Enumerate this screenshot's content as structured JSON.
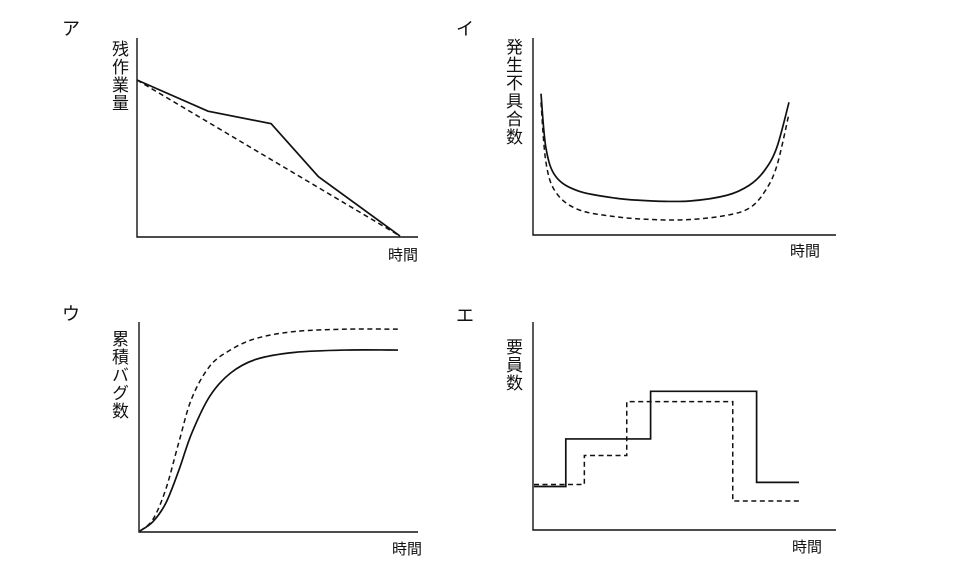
{
  "panels": [
    {
      "id": "a",
      "label": "ア",
      "ylabel": "残作業量",
      "xlabel": "時間",
      "chart_data": {
        "type": "line",
        "series": [
          {
            "style": "solid",
            "points": [
              [
                0,
                1.0
              ],
              [
                0.27,
                0.8
              ],
              [
                0.51,
                0.72
              ],
              [
                0.69,
                0.38
              ],
              [
                1.0,
                0.0
              ]
            ]
          },
          {
            "style": "dashed",
            "points": [
              [
                0,
                1.0
              ],
              [
                1.0,
                0.0
              ]
            ]
          }
        ]
      }
    },
    {
      "id": "i",
      "label": "イ",
      "ylabel": "発生不具合数",
      "xlabel": "時間",
      "chart_data": {
        "type": "line",
        "series": [
          {
            "style": "solid",
            "points": [
              [
                0.0,
                0.96
              ],
              [
                0.02,
                0.58
              ],
              [
                0.06,
                0.38
              ],
              [
                0.15,
                0.28
              ],
              [
                0.3,
                0.23
              ],
              [
                0.45,
                0.21
              ],
              [
                0.6,
                0.21
              ],
              [
                0.75,
                0.25
              ],
              [
                0.84,
                0.32
              ],
              [
                0.9,
                0.42
              ],
              [
                0.95,
                0.58
              ],
              [
                1.0,
                0.9
              ]
            ]
          },
          {
            "style": "dashed",
            "points": [
              [
                0.0,
                0.9
              ],
              [
                0.02,
                0.48
              ],
              [
                0.06,
                0.27
              ],
              [
                0.15,
                0.15
              ],
              [
                0.3,
                0.1
              ],
              [
                0.45,
                0.08
              ],
              [
                0.6,
                0.08
              ],
              [
                0.75,
                0.11
              ],
              [
                0.84,
                0.16
              ],
              [
                0.9,
                0.27
              ],
              [
                0.95,
                0.45
              ],
              [
                1.0,
                0.82
              ]
            ]
          }
        ]
      }
    },
    {
      "id": "u",
      "label": "ウ",
      "ylabel": "累積バグ数",
      "xlabel": "時間",
      "chart_data": {
        "type": "line",
        "series": [
          {
            "style": "solid",
            "points": [
              [
                0,
                0
              ],
              [
                0.05,
                0.04
              ],
              [
                0.1,
                0.12
              ],
              [
                0.15,
                0.26
              ],
              [
                0.2,
                0.42
              ],
              [
                0.27,
                0.58
              ],
              [
                0.35,
                0.68
              ],
              [
                0.45,
                0.74
              ],
              [
                0.6,
                0.77
              ],
              [
                0.8,
                0.78
              ],
              [
                1.0,
                0.78
              ]
            ]
          },
          {
            "style": "dashed",
            "points": [
              [
                0,
                0
              ],
              [
                0.05,
                0.05
              ],
              [
                0.1,
                0.18
              ],
              [
                0.15,
                0.38
              ],
              [
                0.2,
                0.57
              ],
              [
                0.27,
                0.71
              ],
              [
                0.35,
                0.78
              ],
              [
                0.45,
                0.83
              ],
              [
                0.6,
                0.86
              ],
              [
                0.8,
                0.87
              ],
              [
                1.0,
                0.87
              ]
            ]
          }
        ]
      }
    },
    {
      "id": "e",
      "label": "エ",
      "ylabel": "要員数",
      "xlabel": "時間",
      "chart_data": {
        "type": "line",
        "series": [
          {
            "style": "solid",
            "points": [
              [
                0,
                0.21
              ],
              [
                0.12,
                0.21
              ],
              [
                0.12,
                0.44
              ],
              [
                0.44,
                0.44
              ],
              [
                0.44,
                0.67
              ],
              [
                0.84,
                0.67
              ],
              [
                0.84,
                0.23
              ],
              [
                1.0,
                0.23
              ]
            ]
          },
          {
            "style": "dashed",
            "points": [
              [
                0,
                0.22
              ],
              [
                0.19,
                0.22
              ],
              [
                0.19,
                0.36
              ],
              [
                0.35,
                0.36
              ],
              [
                0.35,
                0.62
              ],
              [
                0.75,
                0.62
              ],
              [
                0.75,
                0.14
              ],
              [
                1.0,
                0.14
              ]
            ]
          }
        ]
      }
    }
  ]
}
